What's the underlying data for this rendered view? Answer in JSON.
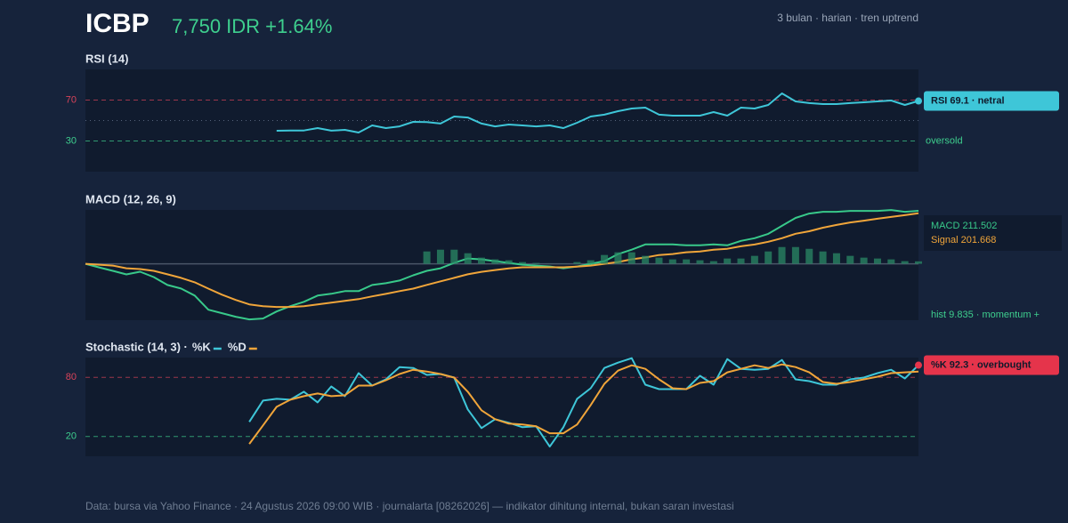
{
  "header": {
    "ticker": "ICBP",
    "price": "7,750 IDR +1.64%",
    "meta": "3 bulan · harian · tren uptrend"
  },
  "footer": "Data: bursa via Yahoo Finance · 24 Agustus 2026 09:00 WIB · journalarta [08262026] — indikator dihitung internal, bukan saran investasi",
  "chart_data": [
    {
      "type": "line",
      "title": "RSI (14)",
      "ylim": [
        0,
        100
      ],
      "yticks": [
        70,
        30
      ],
      "ytick_colors": [
        "#d9435a",
        "#3ecf8e"
      ],
      "midline": 50,
      "annotation": "oversold",
      "badge": "RSI 69.1 · netral",
      "badge_color": "#3ec6d8",
      "series": [
        {
          "name": "RSI",
          "color": "#3ec6d8",
          "values": [
            null,
            null,
            null,
            null,
            null,
            null,
            null,
            null,
            null,
            null,
            null,
            null,
            null,
            null,
            40.0,
            40.2,
            40.3,
            42.6,
            40.1,
            40.9,
            38.3,
            45.2,
            42.6,
            44.3,
            48.7,
            48.5,
            47.0,
            53.9,
            53.0,
            47.0,
            44.3,
            46.1,
            45.2,
            44.3,
            45.2,
            42.6,
            47.8,
            53.9,
            55.7,
            59.1,
            61.7,
            62.6,
            55.7,
            54.8,
            54.8,
            54.8,
            58.3,
            54.8,
            62.6,
            61.7,
            65.2,
            76.5,
            68.7,
            67.0,
            66.1,
            66.1,
            67.0,
            67.8,
            68.7,
            69.6,
            65.2,
            69.1
          ]
        }
      ]
    },
    {
      "type": "line",
      "title": "MACD (12, 26, 9)",
      "ylim": [
        -225,
        215
      ],
      "yticks": [],
      "zero_line": true,
      "legend": "box-right",
      "series": [
        {
          "name": "MACD 211.502",
          "color": "#38c98a",
          "values": [
            0,
            -14.1,
            -28.2,
            -42.2,
            -31.7,
            -52.8,
            -84.5,
            -98.6,
            -126.7,
            -183,
            -197.1,
            -211.2,
            -221.8,
            -218.2,
            -190.1,
            -169,
            -151.4,
            -126.7,
            -119.7,
            -109.1,
            -109.1,
            -84.5,
            -77.4,
            -66.9,
            -45.8,
            -28.2,
            -17.6,
            3.5,
            21.1,
            17.6,
            10.6,
            3.5,
            -3.5,
            -7,
            -10.6,
            -17.6,
            -10.6,
            0,
            10.6,
            38.7,
            56.3,
            77.4,
            77.4,
            77.4,
            73.9,
            73.9,
            77.4,
            73.9,
            91.5,
            102.1,
            119.7,
            151.4,
            183,
            200.6,
            207.7,
            207.7,
            211.2,
            211.2,
            211.2,
            214.7,
            207.7,
            211.502
          ]
        },
        {
          "name": "Signal 201.668",
          "color": "#f0a53a",
          "values": [
            0,
            -3.5,
            -7,
            -17.6,
            -21,
            -28,
            -42,
            -56,
            -74,
            -99,
            -123,
            -144,
            -162,
            -169,
            -172,
            -172,
            -169,
            -162,
            -155,
            -148,
            -141,
            -130,
            -120,
            -109,
            -99,
            -84,
            -70,
            -56,
            -42,
            -32,
            -25,
            -18,
            -14,
            -14,
            -14,
            -14,
            -11,
            -7,
            0,
            7,
            18,
            25,
            35,
            39,
            46,
            49,
            56,
            60,
            70,
            77,
            88,
            102,
            120,
            130,
            144,
            155,
            165,
            172,
            180,
            187,
            194,
            201.668
          ]
        },
        {
          "name": "hist 9.835 · momentum +",
          "kind": "bar",
          "color": "#2a8a66",
          "values": [
            null,
            null,
            null,
            null,
            null,
            null,
            null,
            null,
            null,
            null,
            null,
            null,
            null,
            null,
            null,
            null,
            null,
            null,
            null,
            null,
            null,
            null,
            null,
            null,
            null,
            49.3,
            56.3,
            56.3,
            42.2,
            24.6,
            17.6,
            14.1,
            7.0,
            3.5,
            0.5,
            0.8,
            7.0,
            14.1,
            35.2,
            45.8,
            45.8,
            31.7,
            24.6,
            17.6,
            17.6,
            14.1,
            10.6,
            21.1,
            21.1,
            31.7,
            49.3,
            66.9,
            66.9,
            59.8,
            49.3,
            42.2,
            31.7,
            24.6,
            21.1,
            17.6,
            10.6,
            9.835
          ]
        }
      ]
    },
    {
      "type": "line",
      "title": "Stochastic (14, 3) ·",
      "ylim": [
        0,
        100
      ],
      "yticks": [
        80,
        20
      ],
      "ytick_colors": [
        "#d9435a",
        "#3ecf8e"
      ],
      "legend": "inline-title",
      "badge": "%K 92.3 · overbought",
      "badge_color": "#e5344b",
      "series": [
        {
          "name": "%K",
          "color": "#3ec6d8",
          "values": [
            null,
            null,
            null,
            null,
            null,
            null,
            null,
            null,
            null,
            null,
            null,
            null,
            34.9,
            56.4,
            58.2,
            57.3,
            65.4,
            54.6,
            70.7,
            60.9,
            84.2,
            71.6,
            77.9,
            90.4,
            89.5,
            82.4,
            83.3,
            79.7,
            47.5,
            28.6,
            37.6,
            34.0,
            29.5,
            30.4,
            9.8,
            29.5,
            58.2,
            68.9,
            89.5,
            94.9,
            99.4,
            72.5,
            68.0,
            68.0,
            68.0,
            81.5,
            72.5,
            98.5,
            88.6,
            87.7,
            88.6,
            97.6,
            77.9,
            76.1,
            72.5,
            72.5,
            77.9,
            79.7,
            84.2,
            87.7,
            78.8,
            92.3
          ]
        },
        {
          "name": "%D",
          "color": "#f0a53a",
          "values": [
            null,
            null,
            null,
            null,
            null,
            null,
            null,
            null,
            null,
            null,
            null,
            null,
            12.5,
            31.3,
            50.1,
            57.3,
            60.9,
            63.6,
            60.9,
            61.8,
            71.6,
            71.6,
            77.0,
            83.3,
            87.7,
            85.9,
            83.3,
            79.7,
            65.4,
            46.6,
            37.6,
            33.1,
            32.2,
            30.4,
            23.3,
            23.3,
            32.2,
            51.9,
            73.4,
            86.8,
            92.2,
            88.6,
            77.9,
            68.9,
            68.0,
            74.3,
            76.1,
            85.0,
            88.6,
            92.2,
            89.5,
            93.1,
            90.4,
            85.0,
            75.2,
            73.4,
            75.2,
            77.9,
            80.6,
            84.2,
            85.0,
            85.9
          ]
        }
      ]
    }
  ]
}
